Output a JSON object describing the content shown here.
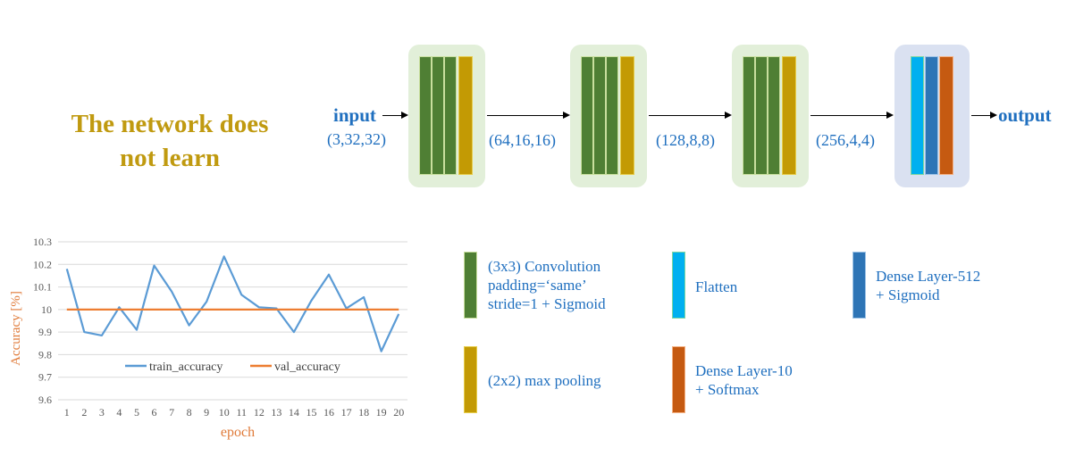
{
  "headline": [
    "The network does",
    "not learn"
  ],
  "diagram": {
    "input_label": "input",
    "output_label": "output",
    "shapes": [
      "(3,32,32)",
      "(64,16,16)",
      "(128,8,8)",
      "(256,4,4)"
    ]
  },
  "legend": {
    "conv": [
      "(3x3) Convolution",
      "padding=‘same’",
      "stride=1 + Sigmoid"
    ],
    "pool": [
      "(2x2) max pooling"
    ],
    "flatten": [
      "Flatten"
    ],
    "dense10": [
      "Dense Layer-10",
      "+ Softmax"
    ],
    "dense512": [
      "Dense Layer-512",
      "+ Sigmoid"
    ]
  },
  "colors": {
    "conv": "#4f7f34",
    "pool": "#c39a04",
    "flatten": "#00b0f0",
    "dense512": "#2e75b6",
    "dense10": "#c55a11"
  },
  "chart_data": {
    "type": "line",
    "x": [
      1,
      2,
      3,
      4,
      5,
      6,
      7,
      8,
      9,
      10,
      11,
      12,
      13,
      14,
      15,
      16,
      17,
      18,
      19,
      20
    ],
    "series": [
      {
        "name": "train_accuracy",
        "color": "#5b9bd5",
        "values": [
          10.18,
          9.9,
          9.885,
          10.01,
          9.91,
          10.195,
          10.08,
          9.93,
          10.035,
          10.235,
          10.065,
          10.01,
          10.005,
          9.9,
          10.04,
          10.155,
          10.005,
          10.055,
          9.815,
          9.98
        ]
      },
      {
        "name": "val_accuracy",
        "color": "#ed7d31",
        "values": [
          10,
          10,
          10,
          10,
          10,
          10,
          10,
          10,
          10,
          10,
          10,
          10,
          10,
          10,
          10,
          10,
          10,
          10,
          10,
          10
        ]
      }
    ],
    "xlabel": "epoch",
    "ylabel": "Accuracy [%]",
    "ylim": [
      9.6,
      10.3
    ],
    "yticks": [
      "9.6",
      "9.7",
      "9.8",
      "9.9",
      "10",
      "10.1",
      "10.2",
      "10.3"
    ],
    "grid": true,
    "legend_position": "bottom-center"
  }
}
